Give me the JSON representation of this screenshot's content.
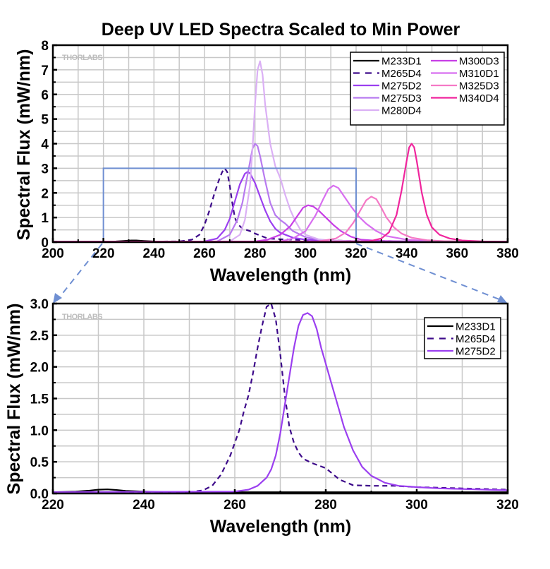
{
  "chart_data": [
    {
      "type": "line",
      "title": "Deep UV LED Spectra Scaled to Min Power",
      "xlabel": "Wavelength (nm)",
      "ylabel": "Spectral Flux (mW/nm)",
      "xlim": [
        200,
        380
      ],
      "ylim": [
        0,
        8
      ],
      "xticks": [
        "200",
        "220",
        "240",
        "260",
        "280",
        "300",
        "320",
        "340",
        "360",
        "380"
      ],
      "yticks": [
        "0",
        "1",
        "2",
        "3",
        "4",
        "5",
        "6",
        "7",
        "8"
      ],
      "grid": true,
      "watermark": "THORLABS",
      "legend_position": "top-right",
      "zoom_box": {
        "x": [
          220,
          320
        ],
        "y": [
          0,
          3
        ]
      },
      "series": [
        {
          "name": "M233D1",
          "color": "#000000",
          "dash": false,
          "x": [
            200,
            225,
            228,
            231,
            233,
            236,
            240,
            250,
            380
          ],
          "y": [
            0.02,
            0.03,
            0.05,
            0.07,
            0.07,
            0.05,
            0.03,
            0.02,
            0.02
          ]
        },
        {
          "name": "M265D4",
          "color": "#3d0a8a",
          "dash": true,
          "x": [
            200,
            250,
            255,
            258,
            260,
            262,
            264,
            266,
            267,
            268,
            269,
            270,
            271,
            272,
            273,
            275,
            278,
            280,
            285,
            290,
            300,
            320,
            380
          ],
          "y": [
            0.02,
            0.03,
            0.1,
            0.3,
            0.7,
            1.3,
            2.0,
            2.6,
            2.85,
            3.0,
            2.85,
            2.3,
            1.6,
            1.0,
            0.75,
            0.55,
            0.45,
            0.35,
            0.15,
            0.12,
            0.08,
            0.05,
            0.02
          ]
        },
        {
          "name": "M275D2",
          "color": "#9b3ff0",
          "dash": false,
          "x": [
            200,
            260,
            265,
            268,
            270,
            272,
            274,
            276,
            277,
            278,
            280,
            282,
            284,
            286,
            288,
            290,
            295,
            300,
            310,
            320,
            380
          ],
          "y": [
            0.02,
            0.03,
            0.15,
            0.5,
            0.95,
            1.65,
            2.35,
            2.78,
            2.85,
            2.8,
            2.4,
            1.85,
            1.3,
            0.85,
            0.55,
            0.38,
            0.18,
            0.1,
            0.06,
            0.04,
            0.02
          ]
        },
        {
          "name": "M275D3",
          "color": "#b87af0",
          "dash": false,
          "x": [
            200,
            265,
            270,
            273,
            275,
            277,
            279,
            280,
            281,
            282,
            284,
            286,
            288,
            290,
            292,
            295,
            300,
            305,
            310,
            320,
            380
          ],
          "y": [
            0.02,
            0.03,
            0.3,
            0.9,
            1.6,
            2.7,
            3.8,
            4.0,
            3.9,
            3.5,
            2.5,
            1.6,
            1.1,
            0.9,
            0.75,
            0.45,
            0.2,
            0.1,
            0.06,
            0.04,
            0.02
          ]
        },
        {
          "name": "M280D4",
          "color": "#dbb0f5",
          "dash": false,
          "x": [
            200,
            270,
            274,
            276,
            278,
            279,
            280,
            281,
            282,
            283,
            284,
            286,
            288,
            290,
            292,
            294,
            296,
            298,
            300,
            305,
            310,
            320,
            380
          ],
          "y": [
            0.02,
            0.03,
            0.3,
            0.9,
            2.3,
            3.8,
            5.6,
            7.0,
            7.35,
            6.8,
            5.6,
            4.0,
            3.1,
            2.6,
            1.9,
            1.3,
            0.85,
            0.5,
            0.3,
            0.12,
            0.06,
            0.04,
            0.02
          ]
        },
        {
          "name": "M300D3",
          "color": "#c83fe6",
          "dash": false,
          "x": [
            200,
            280,
            285,
            290,
            294,
            297,
            299,
            301,
            303,
            305,
            308,
            311,
            314,
            318,
            322,
            330,
            340,
            380
          ],
          "y": [
            0.02,
            0.03,
            0.1,
            0.3,
            0.65,
            1.1,
            1.4,
            1.5,
            1.45,
            1.3,
            1.0,
            0.7,
            0.45,
            0.22,
            0.1,
            0.05,
            0.03,
            0.02
          ]
        },
        {
          "name": "M310D1",
          "color": "#d86ff0",
          "dash": false,
          "x": [
            200,
            290,
            295,
            300,
            304,
            307,
            309,
            311,
            313,
            315,
            318,
            321,
            324,
            328,
            332,
            340,
            350,
            380
          ],
          "y": [
            0.02,
            0.03,
            0.15,
            0.45,
            1.1,
            1.75,
            2.15,
            2.3,
            2.2,
            1.9,
            1.45,
            1.05,
            0.75,
            0.45,
            0.25,
            0.1,
            0.04,
            0.02
          ]
        },
        {
          "name": "M325D3",
          "color": "#f579c6",
          "dash": false,
          "x": [
            200,
            305,
            312,
            316,
            319,
            322,
            324,
            326,
            328,
            330,
            332,
            335,
            338,
            342,
            348,
            355,
            380
          ],
          "y": [
            0.02,
            0.03,
            0.15,
            0.4,
            0.8,
            1.35,
            1.7,
            1.85,
            1.75,
            1.4,
            1.0,
            0.6,
            0.35,
            0.18,
            0.08,
            0.04,
            0.02
          ]
        },
        {
          "name": "M340D4",
          "color": "#f0259d",
          "dash": false,
          "x": [
            200,
            325,
            330,
            333,
            336,
            338,
            340,
            341,
            342,
            343,
            344,
            346,
            348,
            350,
            353,
            357,
            362,
            370,
            380
          ],
          "y": [
            0.02,
            0.03,
            0.15,
            0.4,
            1.1,
            2.1,
            3.3,
            3.85,
            4.0,
            3.85,
            3.3,
            2.0,
            1.1,
            0.6,
            0.3,
            0.15,
            0.07,
            0.03,
            0.02
          ]
        }
      ]
    },
    {
      "type": "line",
      "title": "",
      "xlabel": "Wavelength (nm)",
      "ylabel": "Spectral Flux (mW/nm)",
      "xlim": [
        220,
        320
      ],
      "ylim": [
        0,
        3.0
      ],
      "xticks": [
        "220",
        "240",
        "260",
        "280",
        "300",
        "320"
      ],
      "yticks": [
        "0.0",
        "0.5",
        "1.0",
        "1.5",
        "2.0",
        "2.5",
        "3.0"
      ],
      "grid": true,
      "watermark": "THORLABS",
      "legend_position": "top-right",
      "series": [
        {
          "name": "M233D1",
          "color": "#000000",
          "dash": false,
          "x": [
            220,
            225,
            228,
            230,
            232,
            234,
            236,
            240,
            245,
            320
          ],
          "y": [
            0.02,
            0.03,
            0.045,
            0.06,
            0.065,
            0.055,
            0.04,
            0.03,
            0.02,
            0.02
          ]
        },
        {
          "name": "M265D4",
          "color": "#3d0a8a",
          "dash": true,
          "x": [
            220,
            250,
            253,
            255,
            257,
            259,
            260,
            261,
            262,
            263,
            264,
            265,
            266,
            267,
            268,
            269,
            270,
            271,
            272,
            273,
            274,
            275,
            277,
            280,
            283,
            286,
            290,
            295,
            300,
            310,
            320
          ],
          "y": [
            0.02,
            0.02,
            0.05,
            0.12,
            0.3,
            0.6,
            0.8,
            1.0,
            1.3,
            1.55,
            1.9,
            2.3,
            2.65,
            2.95,
            3.0,
            2.75,
            2.2,
            1.55,
            1.05,
            0.8,
            0.65,
            0.55,
            0.48,
            0.4,
            0.22,
            0.13,
            0.12,
            0.12,
            0.1,
            0.08,
            0.06
          ]
        },
        {
          "name": "M275D2",
          "color": "#9b3ff0",
          "dash": false,
          "x": [
            220,
            260,
            263,
            265,
            267,
            268,
            269,
            270,
            271,
            272,
            273,
            274,
            275,
            276,
            277,
            278,
            279,
            280,
            281,
            282,
            283,
            284,
            286,
            288,
            290,
            293,
            296,
            300,
            305,
            310,
            320
          ],
          "y": [
            0.02,
            0.03,
            0.06,
            0.12,
            0.25,
            0.38,
            0.6,
            0.95,
            1.4,
            1.85,
            2.3,
            2.65,
            2.82,
            2.85,
            2.8,
            2.6,
            2.3,
            2.05,
            1.8,
            1.55,
            1.3,
            1.05,
            0.68,
            0.42,
            0.28,
            0.17,
            0.12,
            0.1,
            0.08,
            0.07,
            0.05
          ]
        }
      ]
    }
  ],
  "annotations": {
    "watermark": "THORLABS"
  }
}
